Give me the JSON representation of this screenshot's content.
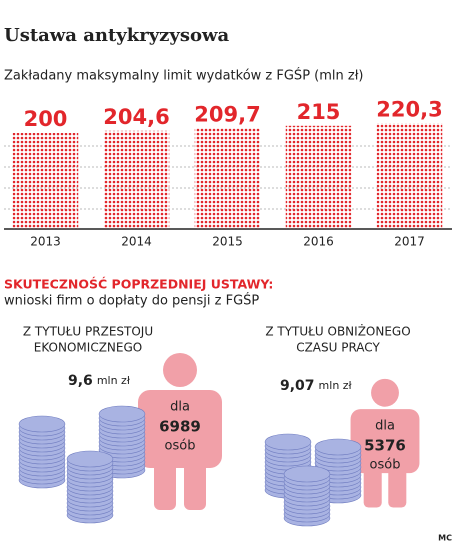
{
  "header": {
    "title": "Ustawa antykryzysowa"
  },
  "chart_data": {
    "type": "bar",
    "subtitle": "Zakładany maksymalny limit wydatków z FGŚP (mln zł)",
    "categories": [
      "2013",
      "2014",
      "2015",
      "2016",
      "2017"
    ],
    "values": [
      200,
      204.6,
      209.7,
      215,
      220.3
    ],
    "value_labels": [
      "200",
      "204,6",
      "209,7",
      "215",
      "220,3"
    ],
    "color": "#e2262b",
    "ylim": [
      0,
      230
    ]
  },
  "section": {
    "heading": "SKUTECZNOŚĆ POPRZEDNIEJ USTAWY:",
    "subheading": "wnioski firm o dopłaty do pensji  z FGŚP"
  },
  "stats": [
    {
      "lines": [
        "Z TYTUŁU PRZESTOJU",
        "EKONOMICZNEGO"
      ],
      "amount": "9,6",
      "unit": "mln zł",
      "prefix": "dla",
      "count": "6989",
      "suffix": "osób"
    },
    {
      "lines": [
        "Z TYTUŁU OBNIŻONEGO",
        "CZASU PRACY"
      ],
      "amount": "9,07",
      "unit": "mln zł",
      "prefix": "dla",
      "count": "5376",
      "suffix": "osób"
    }
  ],
  "credit": "MC"
}
